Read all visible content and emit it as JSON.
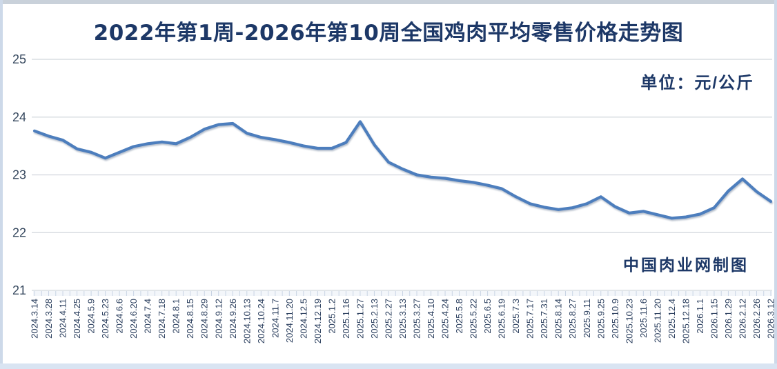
{
  "page": {
    "title": "2022年第1周-2026年第10周全国鸡肉平均零售价格走势图",
    "unit_label": "单位：元/公斤",
    "credit_label": "中国肉业网制图"
  },
  "colors": {
    "title_text": "#1d3867",
    "y_label_text": "#36485e",
    "x_label_text": "#2b3f5e",
    "gridline": "#d9dde2",
    "tick": "#c9d4e4",
    "tick_band": "#f3f6fa",
    "line": "#4d7ebd",
    "line_shadow": "rgba(90,110,140,0.45)"
  },
  "chart_data": {
    "type": "line",
    "title": "2022年第1周-2026年第10周全国鸡肉平均零售价格走势图",
    "unit": "元/公斤",
    "grid": true,
    "legend_position": "none",
    "y_axis": {
      "min": 21,
      "max": 25,
      "tick_values": [
        25,
        24,
        23,
        22,
        21
      ],
      "tick_labels": [
        "25",
        "24",
        "23",
        "22",
        "21"
      ]
    },
    "x_labels": [
      "2024.3.14",
      "2024.3.28",
      "2024.4.11",
      "2024.4.25",
      "2024.5.9",
      "2024.5.23",
      "2024.6.6",
      "2024.6.20",
      "2024.7.4",
      "2024.7.18",
      "2024.8.1",
      "2024.8.15",
      "2024.8.29",
      "2024.9.12",
      "2024.9.26",
      "2024.10.13",
      "2024.10.24",
      "2024.11.7",
      "2024.11.20",
      "2024.12.5",
      "2024.12.19",
      "2025.1.2",
      "2025.1.16",
      "2025.1.27",
      "2025.2.13",
      "2025.2.27",
      "2025.3.13",
      "2025.3.27",
      "2025.4.10",
      "2025.4.24",
      "2025.5.8",
      "2025.5.22",
      "2025.6.5",
      "2025.6.19",
      "2025.7.3",
      "2025.7.17",
      "2025.7.31",
      "2025.8.14",
      "2025.8.27",
      "2025.9.11",
      "2025.9.25",
      "2025.10.9",
      "2025.10.23",
      "2025.11.6",
      "2025.11.20",
      "2025.12.4",
      "2025.12.18",
      "2026.1.1",
      "2026.1.15",
      "2026.1.29",
      "2026.2.12",
      "2026.2.26",
      "2026.3.12"
    ],
    "values": [
      23.76,
      23.67,
      23.6,
      23.45,
      23.39,
      23.29,
      23.39,
      23.49,
      23.54,
      23.57,
      23.54,
      23.65,
      23.79,
      23.87,
      23.89,
      23.72,
      23.65,
      23.61,
      23.56,
      23.5,
      23.46,
      23.46,
      23.56,
      23.92,
      23.52,
      23.22,
      23.1,
      23.0,
      22.96,
      22.94,
      22.9,
      22.87,
      22.82,
      22.76,
      22.62,
      22.5,
      22.44,
      22.4,
      22.43,
      22.5,
      22.62,
      22.45,
      22.34,
      22.37,
      22.31,
      22.25,
      22.27,
      22.32,
      22.43,
      22.72,
      22.93,
      22.71,
      22.54
    ]
  }
}
